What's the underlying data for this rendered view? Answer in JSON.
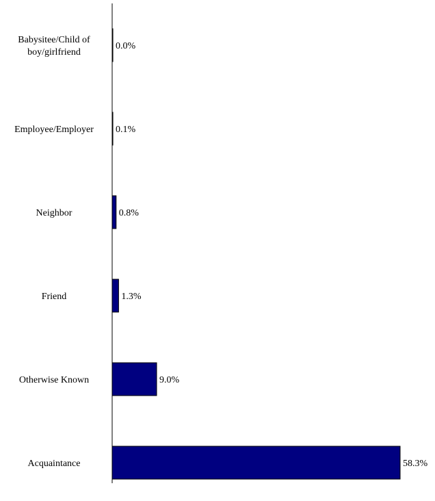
{
  "chart_data": {
    "type": "bar",
    "orientation": "horizontal",
    "categories": [
      [
        "Babysitee/Child of",
        "boy/girlfriend"
      ],
      [
        "Employee/Employer"
      ],
      [
        "Neighbor"
      ],
      [
        "Friend"
      ],
      [
        "Otherwise Known"
      ],
      [
        "Acquaintance"
      ]
    ],
    "values": [
      0.0,
      0.1,
      0.8,
      1.3,
      9.0,
      58.3
    ],
    "value_labels": [
      "0.0%",
      "0.1%",
      "0.8%",
      "1.3%",
      "9.0%",
      "58.3%"
    ],
    "xlim": [
      0,
      58.3
    ],
    "bar_color": "#000080",
    "bar_stroke": "#000000",
    "grid": false,
    "legend": "none"
  }
}
